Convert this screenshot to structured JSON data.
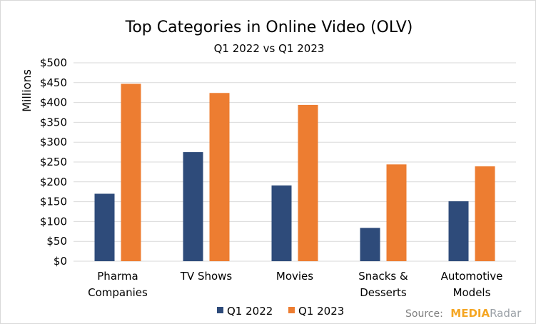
{
  "chart_data": {
    "type": "bar",
    "title": "Top Categories in Online Video (OLV)",
    "subtitle": "Q1 2022 vs Q1 2023",
    "ylabel": "Millions",
    "ylim": [
      0,
      500
    ],
    "yticks": [
      "$0",
      "$50",
      "$100",
      "$150",
      "$200",
      "$250",
      "$300",
      "$350",
      "$400",
      "$450",
      "$500"
    ],
    "ytick_values": [
      0,
      50,
      100,
      150,
      200,
      250,
      300,
      350,
      400,
      450,
      500
    ],
    "categories": [
      [
        "Pharma",
        "Companies"
      ],
      [
        "TV Shows"
      ],
      [
        "Movies"
      ],
      [
        "Snacks &",
        "Desserts"
      ],
      [
        "Automotive",
        "Models"
      ]
    ],
    "series": [
      {
        "name": "Q1 2022",
        "color": "#2e4b7a",
        "values": [
          170,
          275,
          191,
          84,
          151
        ]
      },
      {
        "name": "Q1 2023",
        "color": "#ed7d31",
        "values": [
          447,
          424,
          394,
          244,
          239
        ]
      }
    ],
    "grid": true,
    "legend_position": "bottom"
  },
  "source": {
    "prefix": "Source:",
    "brand_part1": "MEDIA",
    "brand_part2": "Radar"
  }
}
